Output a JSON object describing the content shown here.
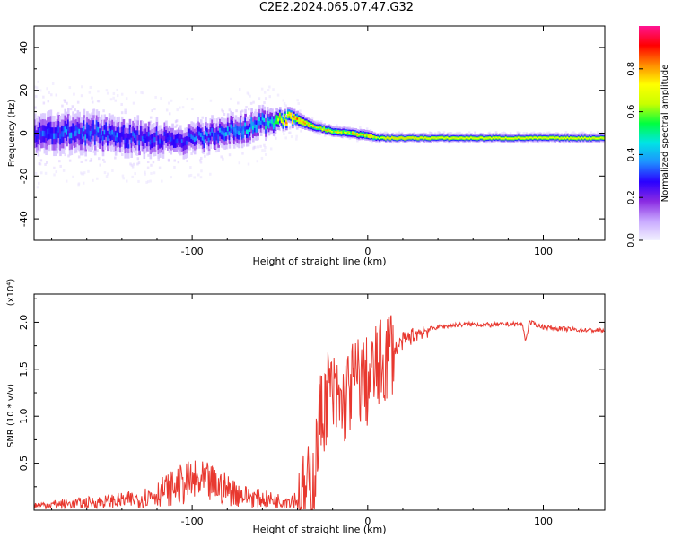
{
  "title": "C2E2.2024.065.07.47.G32",
  "colors": {
    "axis": "#000000",
    "snr_line": "#e8382f",
    "colorbar_stops": [
      "#f2f2ff",
      "#c8a8ff",
      "#8a2be2",
      "#2a00ff",
      "#1e90ff",
      "#00e5e5",
      "#00ff40",
      "#c8ff00",
      "#ffff00",
      "#ff8c00",
      "#ff0000",
      "#ff1493"
    ]
  },
  "chart_data": [
    {
      "type": "heatmap",
      "xlabel": "Height of straight line (km)",
      "ylabel": "Frequency (Hz)",
      "xlim": [
        -190,
        135
      ],
      "ylim": [
        -50,
        50
      ],
      "xticks": [
        -100,
        0,
        100
      ],
      "yticks": [
        -40,
        -20,
        0,
        20,
        40
      ],
      "grid": false,
      "colorbar": {
        "label": "Normalized spectral amplitude",
        "range": [
          0,
          1
        ],
        "ticks": [
          "0.0",
          "0.2",
          "0.4",
          "0.6",
          "0.8"
        ]
      },
      "ridge": {
        "x": [
          -190,
          -170,
          -150,
          -130,
          -110,
          -90,
          -70,
          -55,
          -48,
          -40,
          -30,
          -20,
          -10,
          0,
          5,
          10,
          20,
          40,
          60,
          85,
          100,
          120,
          135
        ],
        "freq": [
          0,
          1,
          0,
          -2,
          -3,
          -1,
          3,
          6,
          7,
          6,
          3,
          1,
          0,
          -1,
          -2,
          -2,
          -2,
          -2,
          -2,
          -2,
          -2,
          -2,
          -2
        ],
        "spread": [
          8,
          8,
          7,
          7,
          6,
          6,
          6,
          5,
          3,
          3,
          2,
          2,
          2,
          2,
          1.5,
          1.5,
          1.5,
          1.5,
          1.5,
          1.5,
          1.5,
          1.5,
          1.5
        ],
        "amplitude": [
          0.3,
          0.35,
          0.35,
          0.3,
          0.3,
          0.35,
          0.4,
          0.45,
          0.85,
          0.8,
          0.7,
          0.7,
          0.7,
          0.75,
          0.8,
          0.95,
          0.95,
          0.92,
          0.92,
          0.92,
          0.92,
          0.92,
          0.92
        ]
      }
    },
    {
      "type": "line",
      "xlabel": "Height of straight line (km)",
      "ylabel": "SNR (10 * v/v)",
      "y_multiplier": "(x10⁴)",
      "xlim": [
        -190,
        135
      ],
      "ylim": [
        0,
        2.3
      ],
      "xticks": [
        -100,
        0,
        100
      ],
      "yticks": [
        0.5,
        1.0,
        1.5,
        2.0
      ],
      "ytick_labels": [
        "0.5",
        "1.0",
        "1.5",
        "2.0"
      ],
      "grid": false,
      "series": [
        {
          "x": [
            -190,
            -170,
            -150,
            -130,
            -120,
            -110,
            -100,
            -90,
            -80,
            -70,
            -60,
            -50,
            -40,
            -35,
            -30,
            -28,
            -25,
            -22,
            -20,
            -15,
            -10,
            -5,
            0,
            5,
            10,
            13,
            15,
            20,
            25,
            30,
            40,
            50,
            60,
            70,
            80,
            88,
            90,
            92,
            100,
            110,
            120,
            135
          ],
          "y": [
            0.05,
            0.07,
            0.09,
            0.12,
            0.18,
            0.25,
            0.3,
            0.28,
            0.22,
            0.15,
            0.12,
            0.1,
            0.12,
            0.15,
            0.4,
            0.9,
            1.1,
            1.3,
            1.2,
            1.1,
            1.3,
            1.4,
            1.35,
            1.5,
            1.6,
            1.75,
            1.7,
            1.8,
            1.85,
            1.9,
            1.95,
            1.97,
            1.98,
            1.97,
            1.98,
            1.98,
            1.8,
            2.0,
            1.95,
            1.93,
            1.92,
            1.91
          ]
        }
      ]
    }
  ]
}
